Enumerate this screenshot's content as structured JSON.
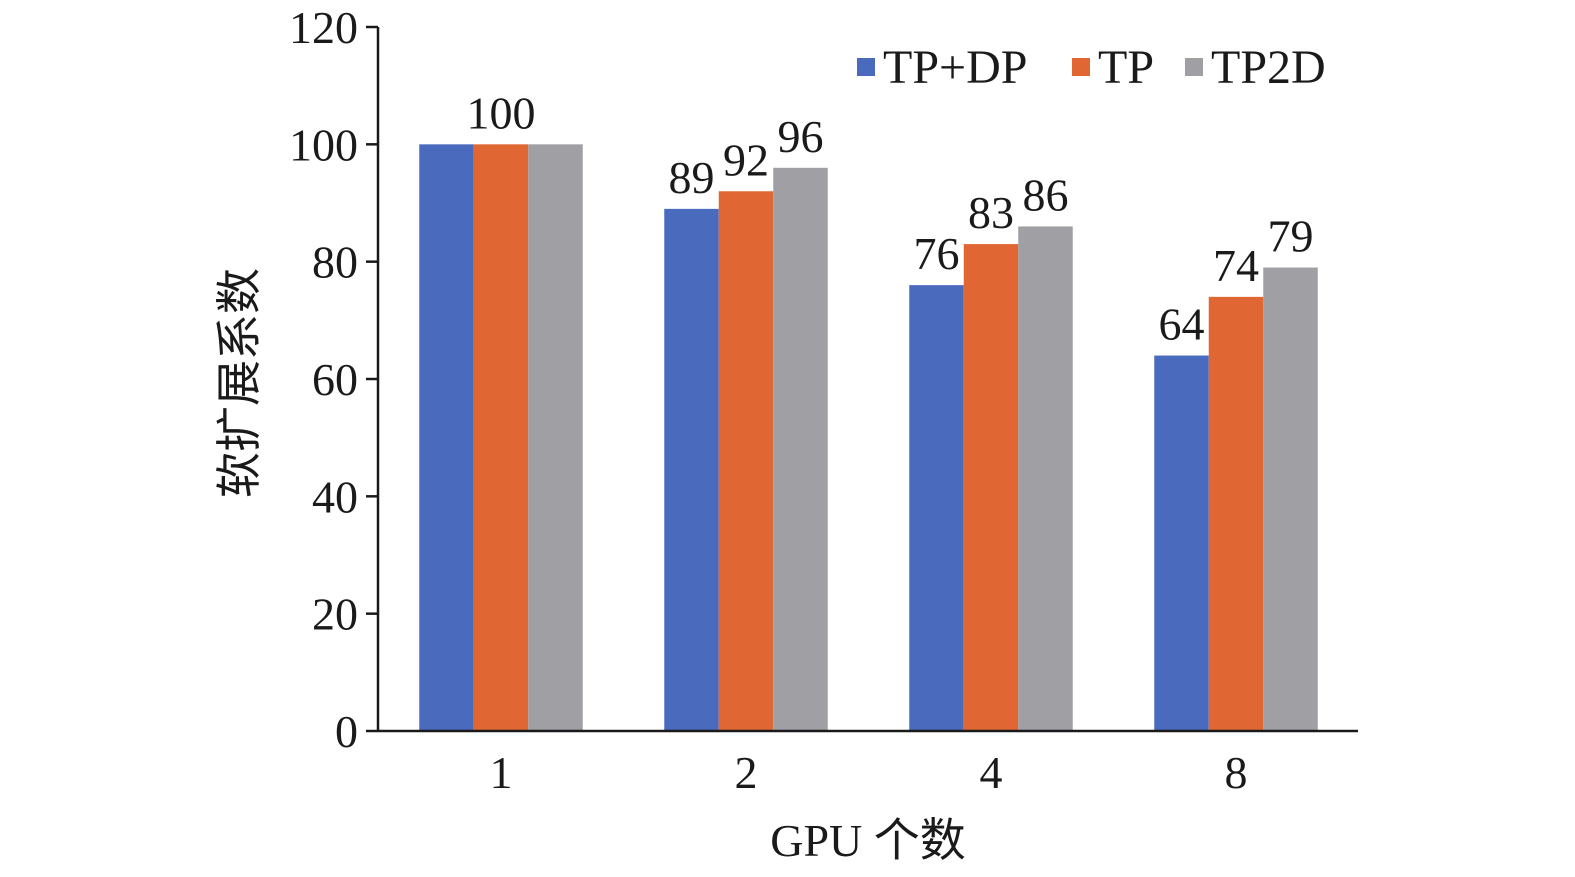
{
  "chart_data": {
    "type": "bar",
    "title": "",
    "xlabel": "GPU 个数",
    "ylabel": "软扩展系数",
    "categories": [
      "1",
      "2",
      "4",
      "8"
    ],
    "ylim": [
      0,
      120
    ],
    "yticks": [
      0,
      20,
      40,
      60,
      80,
      100,
      120
    ],
    "grid": false,
    "legend_position": "top-right",
    "series": [
      {
        "name": "TP+DP",
        "color": "#4a6bbd",
        "values": [
          100,
          89,
          76,
          64
        ]
      },
      {
        "name": "TP",
        "color": "#e06634",
        "values": [
          100,
          92,
          83,
          74
        ]
      },
      {
        "name": "TP2D",
        "color": "#a0a0a4",
        "values": [
          100,
          96,
          86,
          79
        ]
      }
    ],
    "data_labels": [
      [
        "",
        "100",
        ""
      ],
      [
        "89",
        "92",
        "96"
      ],
      [
        "76",
        "83",
        "86"
      ],
      [
        "64",
        "74",
        "79"
      ]
    ]
  }
}
